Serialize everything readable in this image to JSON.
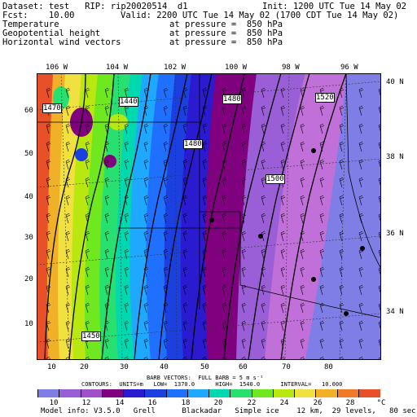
{
  "header": {
    "dataset": "Dataset: test   RIP: rip20020514  d1",
    "init": "Init: 1200 UTC Tue 14 May 02",
    "fcst": "Fcst:    10.00",
    "valid": "Valid: 2200 UTC Tue 14 May 02 (1700 CDT Tue 14 May 02)",
    "fields": [
      {
        "name": "Temperature",
        "pressure": "at pressure =  850 hPa"
      },
      {
        "name": "Geopotential height",
        "pressure": "at pressure =  850 hPa"
      },
      {
        "name": "Horizontal wind vectors",
        "pressure": "at pressure =  850 hPa"
      }
    ]
  },
  "map": {
    "lon_labels": [
      "106 W",
      "104 W",
      "102 W",
      "100 W",
      "98 W",
      "96 W"
    ],
    "lat_labels": [
      "40 N",
      "38 N",
      "36 N",
      "34 N"
    ],
    "y_ticks": [
      "10",
      "20",
      "30",
      "40",
      "50",
      "60"
    ],
    "x_ticks": [
      "10",
      "20",
      "30",
      "40",
      "50",
      "60",
      "70",
      "80"
    ],
    "height_labels": [
      "1440",
      "1470",
      "1480",
      "1500",
      "1520",
      "1480",
      "1450"
    ]
  },
  "footer": {
    "barb": "BARB VECTORS:  FULL BARB = 5 m s⁻¹",
    "contours": "CONTOURS:  UNITS=m   LOW=  1370.0      HIGH=  1540.0      INTERVAL=   10.000",
    "model_info": "Model info: V3.5.0   Grell      Blackadar   Simple ice    12 km,  29 levels,   80 sec"
  },
  "colorbar": {
    "unit": "°C",
    "labels": [
      "10",
      "12",
      "14",
      "16",
      "18",
      "20",
      "22",
      "24",
      "26",
      "28"
    ],
    "colors": [
      "#7e7ee6",
      "#9a5fd6",
      "#a050c8",
      "#800080",
      "#2a1ad0",
      "#1c40e0",
      "#2070ff",
      "#1ea8ff",
      "#00d8b0",
      "#28e070",
      "#70e820",
      "#b8e810",
      "#f0e040",
      "#f0b028",
      "#f07a28",
      "#e8502a"
    ]
  },
  "style": {
    "accent_colors": [
      "#7e7ee6",
      "#800080",
      "#2070ff",
      "#28e070",
      "#f0e040",
      "#e8502a"
    ]
  }
}
